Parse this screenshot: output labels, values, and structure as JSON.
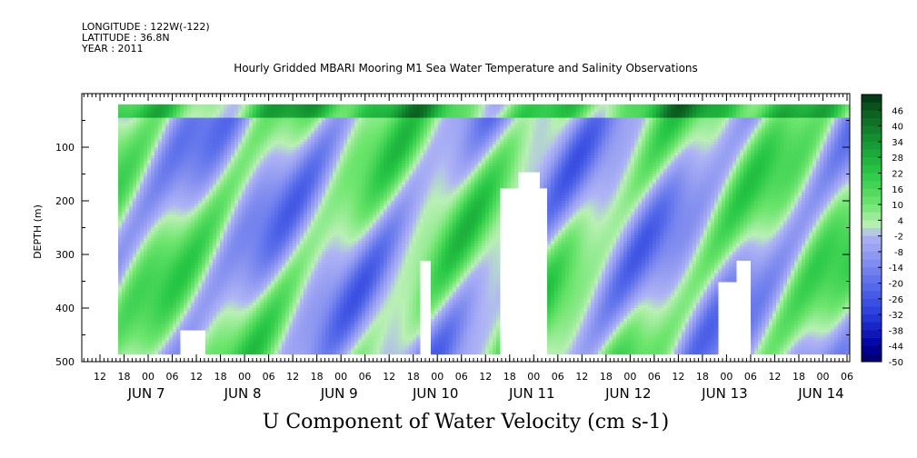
{
  "meta": {
    "longitude": "LONGITUDE : 122W(-122)",
    "latitude": "LATITUDE : 36.8N",
    "year": "YEAR : 2011"
  },
  "chart_data": {
    "type": "heatmap",
    "title": "Hourly Gridded MBARI Mooring M1 Sea Water Temperature and Salinity Observations",
    "xlabel": "U Component of Water Velocity (cm s-1)",
    "ylabel": "DEPTH (m)",
    "ylim": [
      500,
      0
    ],
    "y_ticks": [
      100,
      200,
      300,
      400,
      500
    ],
    "hour_labels": [
      "12",
      "18",
      "00",
      "06",
      "12",
      "18",
      "00",
      "06",
      "12",
      "18",
      "00",
      "06",
      "12",
      "18",
      "00",
      "06",
      "12",
      "18",
      "00",
      "06",
      "12",
      "18",
      "00",
      "06",
      "12",
      "18",
      "00",
      "06",
      "12",
      "18",
      "00",
      "06"
    ],
    "day_labels": [
      "JUN  7",
      "JUN  8",
      "JUN  9",
      "JUN 10",
      "JUN 11",
      "JUN 12",
      "JUN 13",
      "JUN 14"
    ],
    "colorbar": {
      "labels": [
        "46",
        "40",
        "34",
        "28",
        "22",
        "16",
        "10",
        "4",
        "-2",
        "-8",
        "-14",
        "-20",
        "-26",
        "-32",
        "-38",
        "-44",
        "-50"
      ],
      "range": [
        -50,
        52
      ],
      "step": 3
    },
    "data_depth_range": [
      20,
      485
    ]
  }
}
